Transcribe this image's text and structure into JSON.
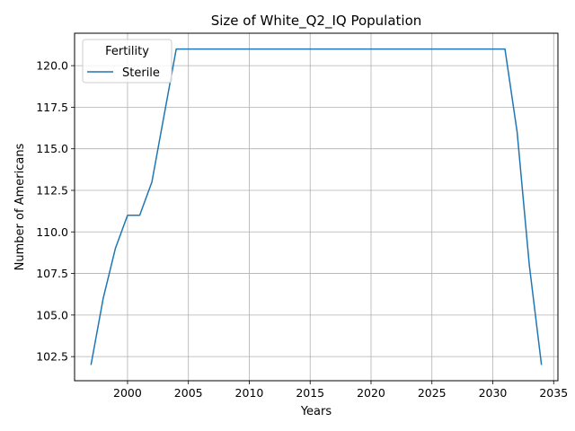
{
  "chart_data": {
    "type": "line",
    "title": "Size of White_Q2_IQ Population",
    "xlabel": "Years",
    "ylabel": "Number of Americans",
    "xlim": [
      1995.65,
      2035.35
    ],
    "ylim": [
      101.05,
      121.95
    ],
    "xticks": [
      2000,
      2005,
      2010,
      2015,
      2020,
      2025,
      2030,
      2035
    ],
    "xtick_labels": [
      "2000",
      "2005",
      "2010",
      "2015",
      "2020",
      "2025",
      "2030",
      "2035"
    ],
    "yticks": [
      102.5,
      105.0,
      107.5,
      110.0,
      112.5,
      115.0,
      117.5,
      120.0
    ],
    "ytick_labels": [
      "102.5",
      "105.0",
      "107.5",
      "110.0",
      "112.5",
      "115.0",
      "117.5",
      "120.0"
    ],
    "grid": true,
    "legend": {
      "title": "Fertility",
      "placement": "top-left"
    },
    "series": [
      {
        "name": "Sterile",
        "color": "#1f77b4",
        "x": [
          1997,
          1998,
          1999,
          2000,
          2001,
          2002,
          2003,
          2004,
          2005,
          2010,
          2015,
          2020,
          2025,
          2030,
          2031,
          2032,
          2033,
          2034
        ],
        "y": [
          102,
          106,
          109,
          111,
          111,
          113,
          117,
          121,
          121,
          121,
          121,
          121,
          121,
          121,
          121,
          116,
          108,
          102
        ]
      }
    ]
  }
}
